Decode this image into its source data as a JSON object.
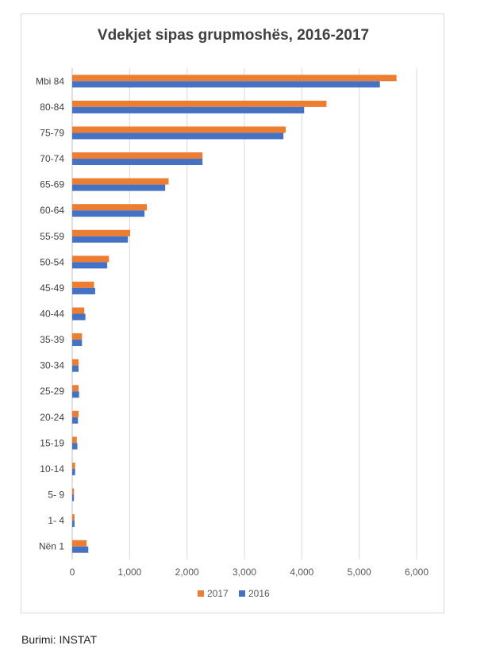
{
  "chart_data": {
    "type": "bar",
    "orientation": "horizontal",
    "title": "Vdekjet sipas grupmoshës, 2016-2017",
    "categories": [
      "Mbi 84",
      "80-84",
      "75-79",
      "70-74",
      "65-69",
      "60-64",
      "55-59",
      "50-54",
      "45-49",
      "40-44",
      "35-39",
      "30-34",
      "25-29",
      "20-24",
      "15-19",
      "10-14",
      "5- 9",
      "1- 4",
      "Nën 1"
    ],
    "series": [
      {
        "name": "2017",
        "color": "#ED7D31",
        "values": [
          5650,
          4430,
          3720,
          2270,
          1680,
          1300,
          1010,
          640,
          380,
          210,
          170,
          110,
          110,
          110,
          80,
          50,
          30,
          40,
          250
        ]
      },
      {
        "name": "2016",
        "color": "#4472C4",
        "values": [
          5360,
          4040,
          3680,
          2270,
          1620,
          1260,
          970,
          610,
          400,
          230,
          170,
          110,
          120,
          100,
          90,
          50,
          30,
          40,
          280
        ]
      }
    ],
    "xlim": [
      0,
      6000
    ],
    "xticks": [
      "0",
      "1,000",
      "2,000",
      "3,000",
      "4,000",
      "5,000",
      "6,000"
    ],
    "grid": true,
    "legend_position": "bottom"
  },
  "source": "Burimi: INSTAT"
}
